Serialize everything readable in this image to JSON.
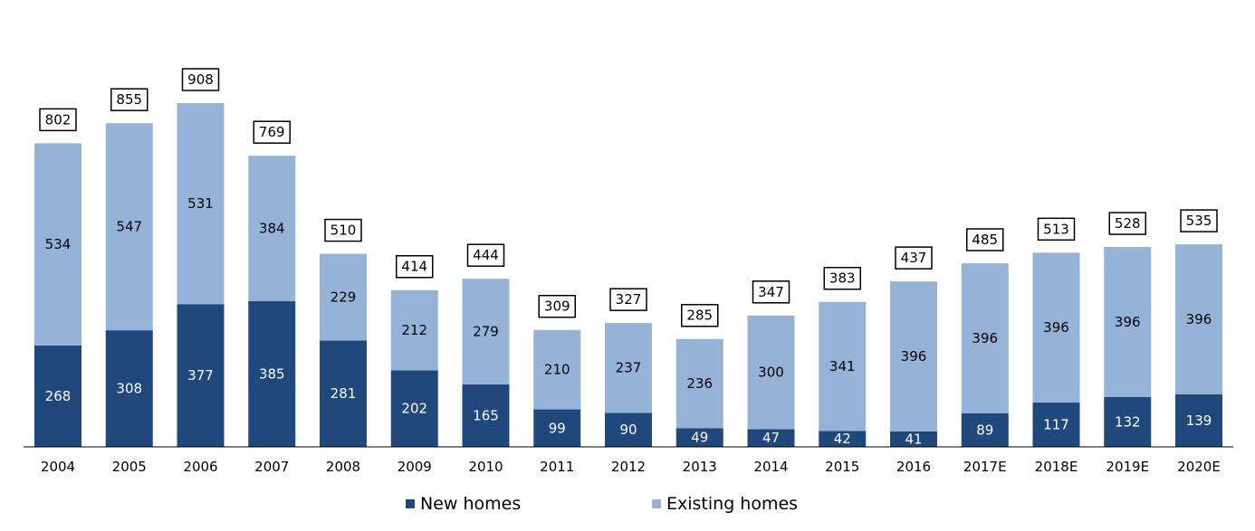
{
  "chart_data": {
    "type": "bar",
    "stacked": true,
    "categories": [
      "2004",
      "2005",
      "2006",
      "2007",
      "2008",
      "2009",
      "2010",
      "2011",
      "2012",
      "2013",
      "2014",
      "2015",
      "2016",
      "2017E",
      "2018E",
      "2019E",
      "2020E"
    ],
    "series": [
      {
        "name": "New homes",
        "color": "#1f497d",
        "values": [
          268,
          308,
          377,
          385,
          281,
          202,
          165,
          99,
          90,
          49,
          47,
          42,
          41,
          89,
          117,
          132,
          139
        ]
      },
      {
        "name": "Existing homes",
        "color": "#95b3d7",
        "values": [
          534,
          547,
          531,
          384,
          229,
          212,
          279,
          210,
          237,
          236,
          300,
          341,
          396,
          396,
          396,
          396,
          396
        ]
      }
    ],
    "totals": [
      802,
      855,
      908,
      769,
      510,
      414,
      444,
      309,
      327,
      285,
      347,
      383,
      437,
      485,
      513,
      528,
      535
    ],
    "ylim": [
      0,
      1000
    ],
    "grid": false,
    "legend": "bottom"
  }
}
